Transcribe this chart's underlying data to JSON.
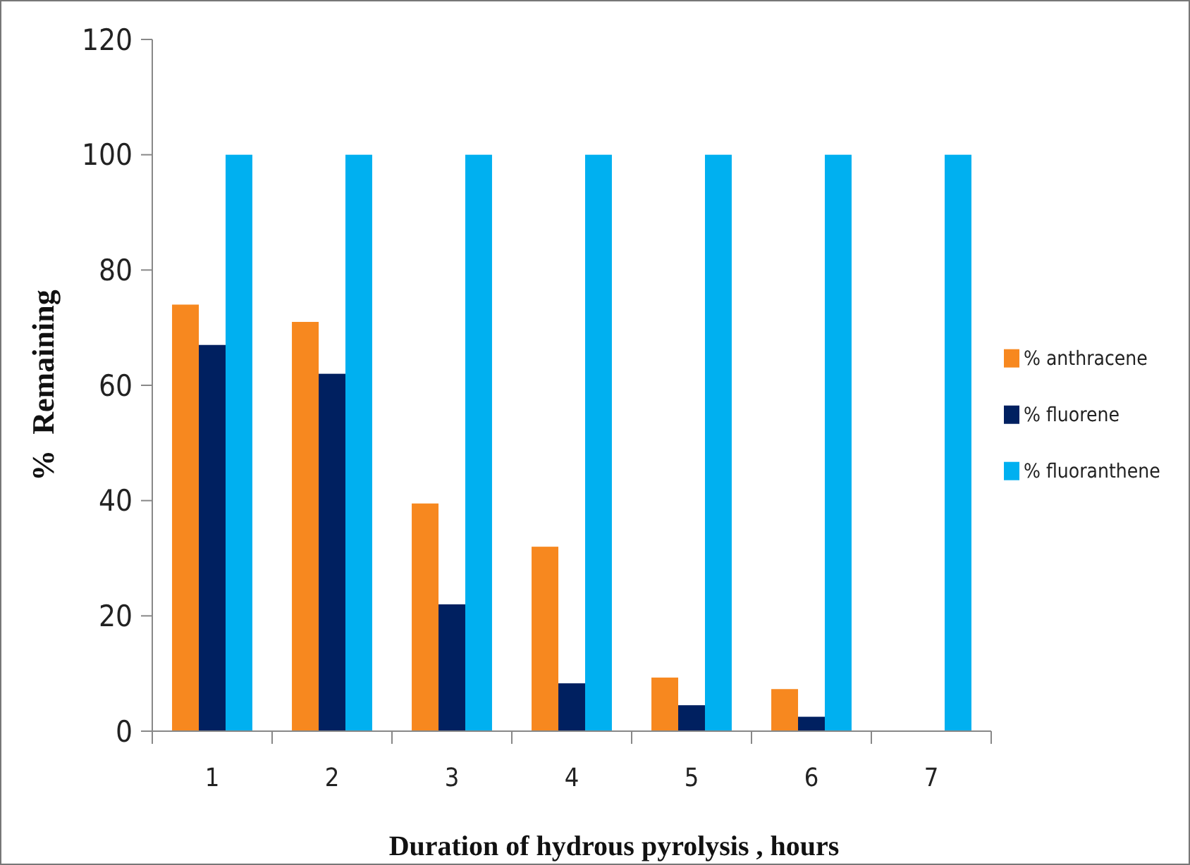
{
  "chart_data": {
    "type": "bar",
    "xlabel": "Duration of hydrous pyrolysis , hours",
    "ylabel": "%  Remaining",
    "categories": [
      "1",
      "2",
      "3",
      "4",
      "5",
      "6",
      "7"
    ],
    "series": [
      {
        "name": "% anthracene",
        "color": "#f7881f",
        "values": [
          74,
          71,
          39.5,
          32,
          9.3,
          7.3,
          0
        ]
      },
      {
        "name": "% fluorene",
        "color": "#002060",
        "values": [
          67,
          62,
          22,
          8.3,
          4.5,
          2.5,
          0
        ]
      },
      {
        "name": "% fluoranthene",
        "color": "#00b0f0",
        "values": [
          100,
          100,
          100,
          100,
          100,
          100,
          100
        ]
      }
    ],
    "ylim": [
      0,
      120
    ],
    "yticks": [
      0,
      20,
      40,
      60,
      80,
      100,
      120
    ],
    "grid": false,
    "legend": "right"
  }
}
